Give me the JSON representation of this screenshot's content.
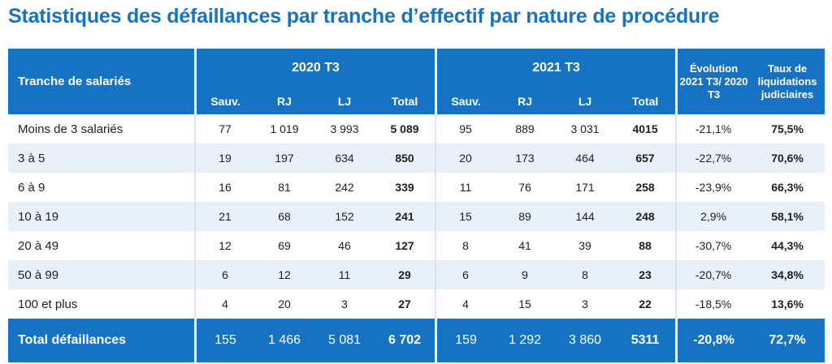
{
  "title": "Statistiques des défaillances par tranche d’effectif par nature de procédure",
  "header": {
    "tranche": "Tranche de salariés",
    "group_2020": "2020 T3",
    "group_2021": "2021 T3",
    "evolution": "Évolution 2021 T3/ 2020 T3",
    "taux": "Taux de liquidations judiciaires",
    "sub": [
      "Sauv.",
      "RJ",
      "LJ",
      "Total"
    ]
  },
  "rows": [
    {
      "label": "Moins de 3 salariés",
      "v2020": [
        "77",
        "1 019",
        "3 993",
        "5 089"
      ],
      "v2021": [
        "95",
        "889",
        "3 031",
        "4015"
      ],
      "evolution": "-21,1%",
      "taux": "75,5%"
    },
    {
      "label": "3 à 5",
      "v2020": [
        "19",
        "197",
        "634",
        "850"
      ],
      "v2021": [
        "20",
        "173",
        "464",
        "657"
      ],
      "evolution": "-22,7%",
      "taux": "70,6%"
    },
    {
      "label": "6 à 9",
      "v2020": [
        "16",
        "81",
        "242",
        "339"
      ],
      "v2021": [
        "11",
        "76",
        "171",
        "258"
      ],
      "evolution": "-23,9%",
      "taux": "66,3%"
    },
    {
      "label": "10 à 19",
      "v2020": [
        "21",
        "68",
        "152",
        "241"
      ],
      "v2021": [
        "15",
        "89",
        "144",
        "248"
      ],
      "evolution": "2,9%",
      "taux": "58,1%"
    },
    {
      "label": "20 à 49",
      "v2020": [
        "12",
        "69",
        "46",
        "127"
      ],
      "v2021": [
        "8",
        "41",
        "39",
        "88"
      ],
      "evolution": "-30,7%",
      "taux": "44,3%"
    },
    {
      "label": "50 à 99",
      "v2020": [
        "6",
        "12",
        "11",
        "29"
      ],
      "v2021": [
        "6",
        "9",
        "8",
        "23"
      ],
      "evolution": "-20,7%",
      "taux": "34,8%"
    },
    {
      "label": "100 et plus",
      "v2020": [
        "4",
        "20",
        "3",
        "27"
      ],
      "v2021": [
        "4",
        "15",
        "3",
        "22"
      ],
      "evolution": "-18,5%",
      "taux": "13,6%"
    }
  ],
  "total": {
    "label": "Total défaillances",
    "v2020": [
      "155",
      "1 466",
      "5 081",
      "6 702"
    ],
    "v2021": [
      "159",
      "1 292",
      "3 860",
      "5311"
    ],
    "evolution": "-20,8%",
    "taux": "72,7%"
  },
  "colors": {
    "header_blue": "#1673c4",
    "stripe": "#e8f0fa",
    "title": "#1673c4"
  }
}
